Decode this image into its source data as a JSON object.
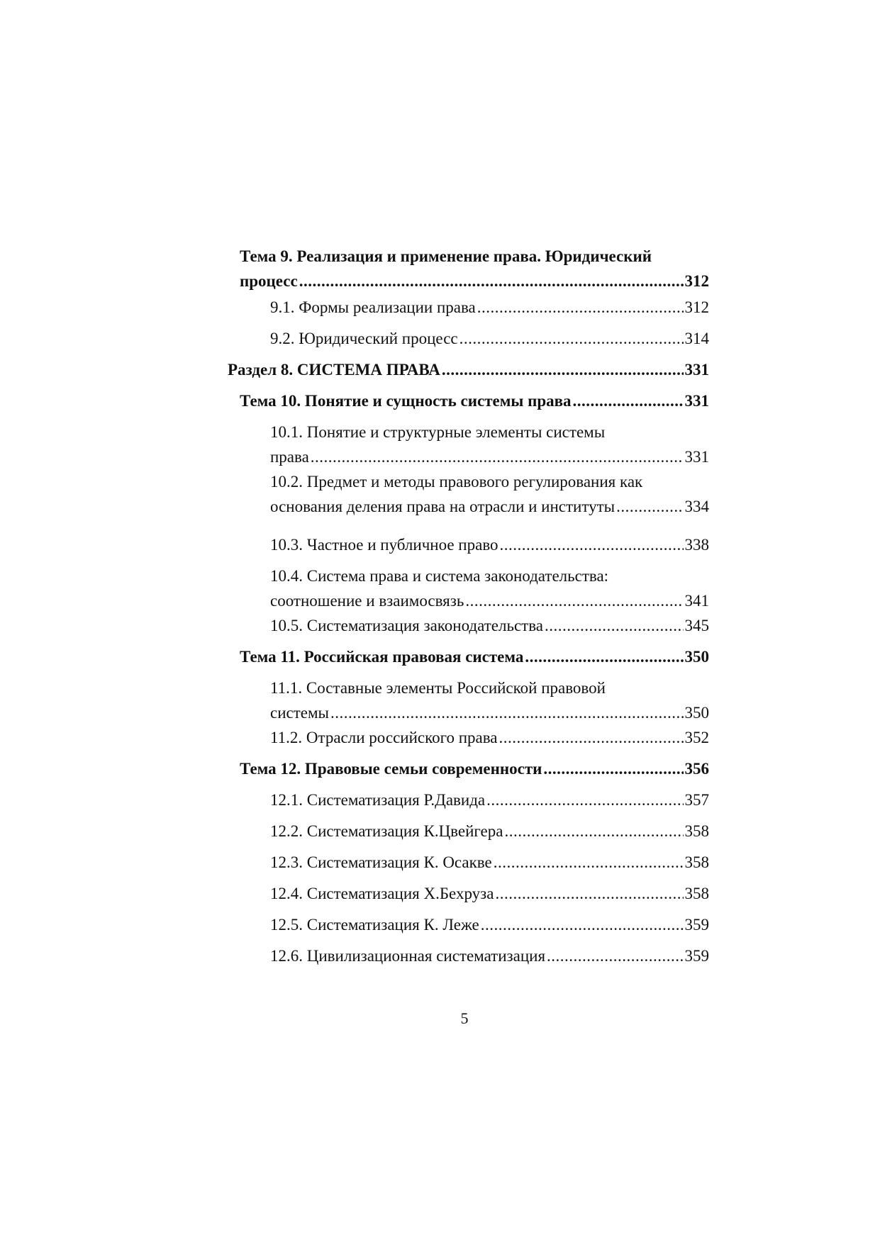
{
  "toc": [
    {
      "first": "Тема 9. Реализация и применение права. Юридический",
      "last": "процесс",
      "page": "312",
      "level": 1,
      "bold": true
    },
    {
      "last": "9.1. Формы реализации права",
      "page": "312",
      "level": 2
    },
    {
      "last": "9.2. Юридический процесс",
      "page": "314",
      "level": 2
    },
    {
      "last": "Раздел 8. СИСТЕМА ПРАВА",
      "page": "331",
      "level": 0,
      "bold": true
    },
    {
      "last": "Тема 10. Понятие и сущность системы права",
      "page": "331",
      "level": 1,
      "bold": true
    },
    {
      "first": "10.1. Понятие и структурные элементы системы",
      "last": "права",
      "page": "331",
      "level": 2
    },
    {
      "first": "10.2. Предмет и методы правового регулирования как",
      "last": "основания деления права на отрасли и институты",
      "page": "334",
      "level": 2
    },
    {
      "last": "10.3. Частное и публичное право",
      "page": "338",
      "level": 2
    },
    {
      "first": "10.4. Система права и система законодательства:",
      "last": "соотношение и взаимосвязь",
      "page": "341",
      "level": 2
    },
    {
      "last": "10.5. Систематизация законодательства",
      "page": "345",
      "level": 2
    },
    {
      "last": "Тема 11. Российская правовая система",
      "page": "350",
      "level": 1,
      "bold": true
    },
    {
      "first": "11.1. Составные элементы Российской правовой",
      "last": "системы",
      "page": "350",
      "level": 2
    },
    {
      "last": "11.2. Отрасли российского права",
      "page": "352",
      "level": 2
    },
    {
      "last": "Тема 12. Правовые семьи современности",
      "page": "356",
      "level": 1,
      "bold": true
    },
    {
      "last": "12.1. Систематизация Р.Давида",
      "page": "357",
      "level": 2
    },
    {
      "last": "12.2. Систематизация К.Цвейгера",
      "page": "358",
      "level": 2
    },
    {
      "last": "12.3. Систематизация К. Осакве",
      "page": "358",
      "level": 2
    },
    {
      "last": "12.4. Систематизация Х.Бехруза",
      "page": "358",
      "level": 2
    },
    {
      "last": "12.5. Систематизация К. Леже",
      "page": "359",
      "level": 2
    },
    {
      "last": "12.6. Цивилизационная систематизация",
      "page": "359",
      "level": 2
    }
  ],
  "page_number": "5"
}
